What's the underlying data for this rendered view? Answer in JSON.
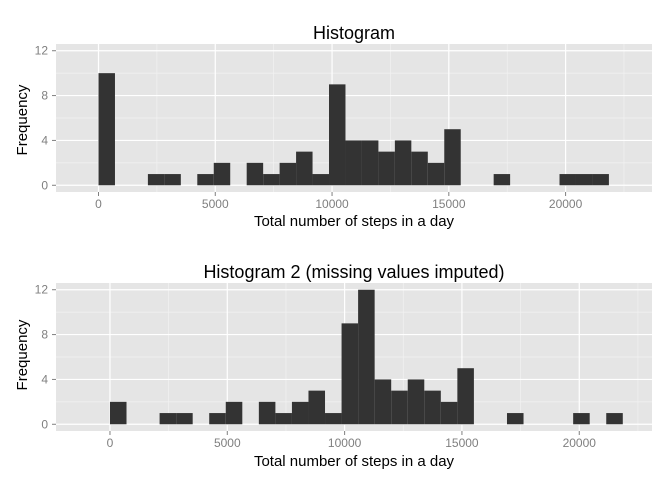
{
  "chart_data": [
    {
      "type": "bar",
      "title": "Histogram",
      "xlabel": "Total number of steps in a day",
      "ylabel": "Frequency",
      "bin_width": 705,
      "bin_starts": [
        0,
        2115,
        2820,
        4230,
        4935,
        6345,
        7050,
        7755,
        8460,
        9165,
        9870,
        10575,
        11280,
        11985,
        12690,
        13395,
        14100,
        14805,
        16920,
        19740,
        20445,
        21150
      ],
      "values": [
        10,
        1,
        1,
        1,
        2,
        2,
        1,
        2,
        3,
        1,
        9,
        4,
        4,
        3,
        4,
        3,
        2,
        5,
        1,
        1,
        1,
        1
      ],
      "xlim": [
        -1820,
        23700
      ],
      "ylim": [
        -0.6,
        12.6
      ],
      "x_ticks": [
        0,
        5000,
        10000,
        15000,
        20000
      ],
      "x_tick_labels": [
        "0",
        "5000",
        "10000",
        "15000",
        "20000"
      ],
      "y_ticks": [
        0,
        4,
        8,
        12
      ],
      "y_tick_labels": [
        "0",
        "4",
        "8",
        "12"
      ],
      "grid": true,
      "bar_color": "#333333",
      "panel_color": "#e5e5e5",
      "grid_color": "#ffffff"
    },
    {
      "type": "bar",
      "title": "Histogram 2 (missing values imputed)",
      "xlabel": "Total number of steps in a day",
      "ylabel": "Frequency",
      "bin_width": 705,
      "bin_starts": [
        0,
        2115,
        2820,
        4230,
        4935,
        6345,
        7050,
        7755,
        8460,
        9165,
        9870,
        10575,
        11280,
        11985,
        12690,
        13395,
        14100,
        14805,
        16920,
        19740,
        21150
      ],
      "values": [
        2,
        1,
        1,
        1,
        2,
        2,
        1,
        2,
        3,
        1,
        9,
        12,
        4,
        3,
        4,
        3,
        2,
        5,
        1,
        1,
        1
      ],
      "xlim": [
        -2300,
        23100
      ],
      "ylim": [
        -0.6,
        12.6
      ],
      "x_ticks": [
        0,
        5000,
        10000,
        15000,
        20000
      ],
      "x_tick_labels": [
        "0",
        "5000",
        "10000",
        "15000",
        "20000"
      ],
      "y_ticks": [
        0,
        4,
        8,
        12
      ],
      "y_tick_labels": [
        "0",
        "4",
        "8",
        "12"
      ],
      "grid": true,
      "bar_color": "#333333",
      "panel_color": "#e5e5e5",
      "grid_color": "#ffffff"
    }
  ]
}
